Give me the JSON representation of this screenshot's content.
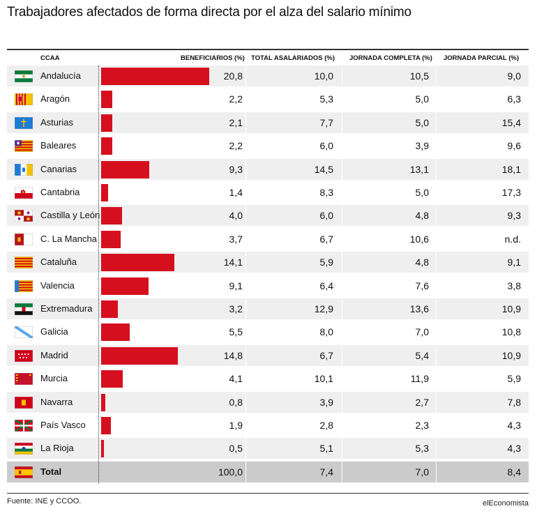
{
  "title": "Trabajadores afectados de forma directa por el alza del salario mínimo",
  "headers": {
    "region": "CCAA",
    "beneficiarios": "BENEFICIARIOS (%)",
    "total": "TOTAL ASALARIADOS (%)",
    "completa": "JORNADA COMPLETA (%)",
    "parcial": "JORNADA PARCIAL (%)"
  },
  "colors": {
    "bar": "#d60f1f",
    "row_alt": "#efefef",
    "row_total": "#cbcbcb"
  },
  "chart_data": {
    "type": "table",
    "columns": [
      "CCAA",
      "BENEFICIARIOS (%)",
      "TOTAL ASALARIADOS (%)",
      "JORNADA COMPLETA (%)",
      "JORNADA PARCIAL (%)"
    ],
    "bar_column": "BENEFICIARIOS (%)",
    "bar_max": 20.8,
    "rows": [
      {
        "region": "Andalucía",
        "flag": "andalucia-flag-icon",
        "beneficiarios": 20.8,
        "beneficiarios_label": "20,8",
        "total": "10,0",
        "completa": "10,5",
        "parcial": "9,0"
      },
      {
        "region": "Aragón",
        "flag": "aragon-flag-icon",
        "beneficiarios": 2.2,
        "beneficiarios_label": "2,2",
        "total": "5,3",
        "completa": "5,0",
        "parcial": "6,3"
      },
      {
        "region": "Asturias",
        "flag": "asturias-flag-icon",
        "beneficiarios": 2.1,
        "beneficiarios_label": "2,1",
        "total": "7,7",
        "completa": "5,0",
        "parcial": "15,4"
      },
      {
        "region": "Baleares",
        "flag": "baleares-flag-icon",
        "beneficiarios": 2.2,
        "beneficiarios_label": "2,2",
        "total": "6,0",
        "completa": "3,9",
        "parcial": "9,6"
      },
      {
        "region": "Canarias",
        "flag": "canarias-flag-icon",
        "beneficiarios": 9.3,
        "beneficiarios_label": "9,3",
        "total": "14,5",
        "completa": "13,1",
        "parcial": "18,1"
      },
      {
        "region": "Cantabria",
        "flag": "cantabria-flag-icon",
        "beneficiarios": 1.4,
        "beneficiarios_label": "1,4",
        "total": "8,3",
        "completa": "5,0",
        "parcial": "17,3"
      },
      {
        "region": "Castilla y León",
        "flag": "castilla-leon-flag-icon",
        "beneficiarios": 4.0,
        "beneficiarios_label": "4,0",
        "total": "6,0",
        "completa": "4,8",
        "parcial": "9,3"
      },
      {
        "region": "C. La Mancha",
        "flag": "castilla-la-mancha-flag-icon",
        "beneficiarios": 3.7,
        "beneficiarios_label": "3,7",
        "total": "6,7",
        "completa": "10,6",
        "parcial": "n.d."
      },
      {
        "region": "Cataluña",
        "flag": "cataluna-flag-icon",
        "beneficiarios": 14.1,
        "beneficiarios_label": "14,1",
        "total": "5,9",
        "completa": "4,8",
        "parcial": "9,1"
      },
      {
        "region": "Valencia",
        "flag": "valencia-flag-icon",
        "beneficiarios": 9.1,
        "beneficiarios_label": "9,1",
        "total": "6,4",
        "completa": "7,6",
        "parcial": "3,8"
      },
      {
        "region": "Extremadura",
        "flag": "extremadura-flag-icon",
        "beneficiarios": 3.2,
        "beneficiarios_label": "3,2",
        "total": "12,9",
        "completa": "13,6",
        "parcial": "10,9"
      },
      {
        "region": "Galicia",
        "flag": "galicia-flag-icon",
        "beneficiarios": 5.5,
        "beneficiarios_label": "5,5",
        "total": "8,0",
        "completa": "7,0",
        "parcial": "10,8"
      },
      {
        "region": "Madrid",
        "flag": "madrid-flag-icon",
        "beneficiarios": 14.8,
        "beneficiarios_label": "14,8",
        "total": "6,7",
        "completa": "5,4",
        "parcial": "10,9"
      },
      {
        "region": "Murcia",
        "flag": "murcia-flag-icon",
        "beneficiarios": 4.1,
        "beneficiarios_label": "4,1",
        "total": "10,1",
        "completa": "11,9",
        "parcial": "5,9"
      },
      {
        "region": "Navarra",
        "flag": "navarra-flag-icon",
        "beneficiarios": 0.8,
        "beneficiarios_label": "0,8",
        "total": "3,9",
        "completa": "2,7",
        "parcial": "7,8"
      },
      {
        "region": "País Vasco",
        "flag": "pais-vasco-flag-icon",
        "beneficiarios": 1.9,
        "beneficiarios_label": "1,9",
        "total": "2,8",
        "completa": "2,3",
        "parcial": "4,3"
      },
      {
        "region": "La Rioja",
        "flag": "la-rioja-flag-icon",
        "beneficiarios": 0.5,
        "beneficiarios_label": "0,5",
        "total": "5,1",
        "completa": "5,3",
        "parcial": "4,3"
      },
      {
        "region": "Total",
        "flag": "spain-flag-icon",
        "beneficiarios": 100.0,
        "beneficiarios_label": "100,0",
        "total": "7,4",
        "completa": "7,0",
        "parcial": "8,4",
        "is_total": true
      }
    ]
  },
  "footer": {
    "source": "Fuente: INE y CCOO.",
    "brand": "elEconomista"
  }
}
